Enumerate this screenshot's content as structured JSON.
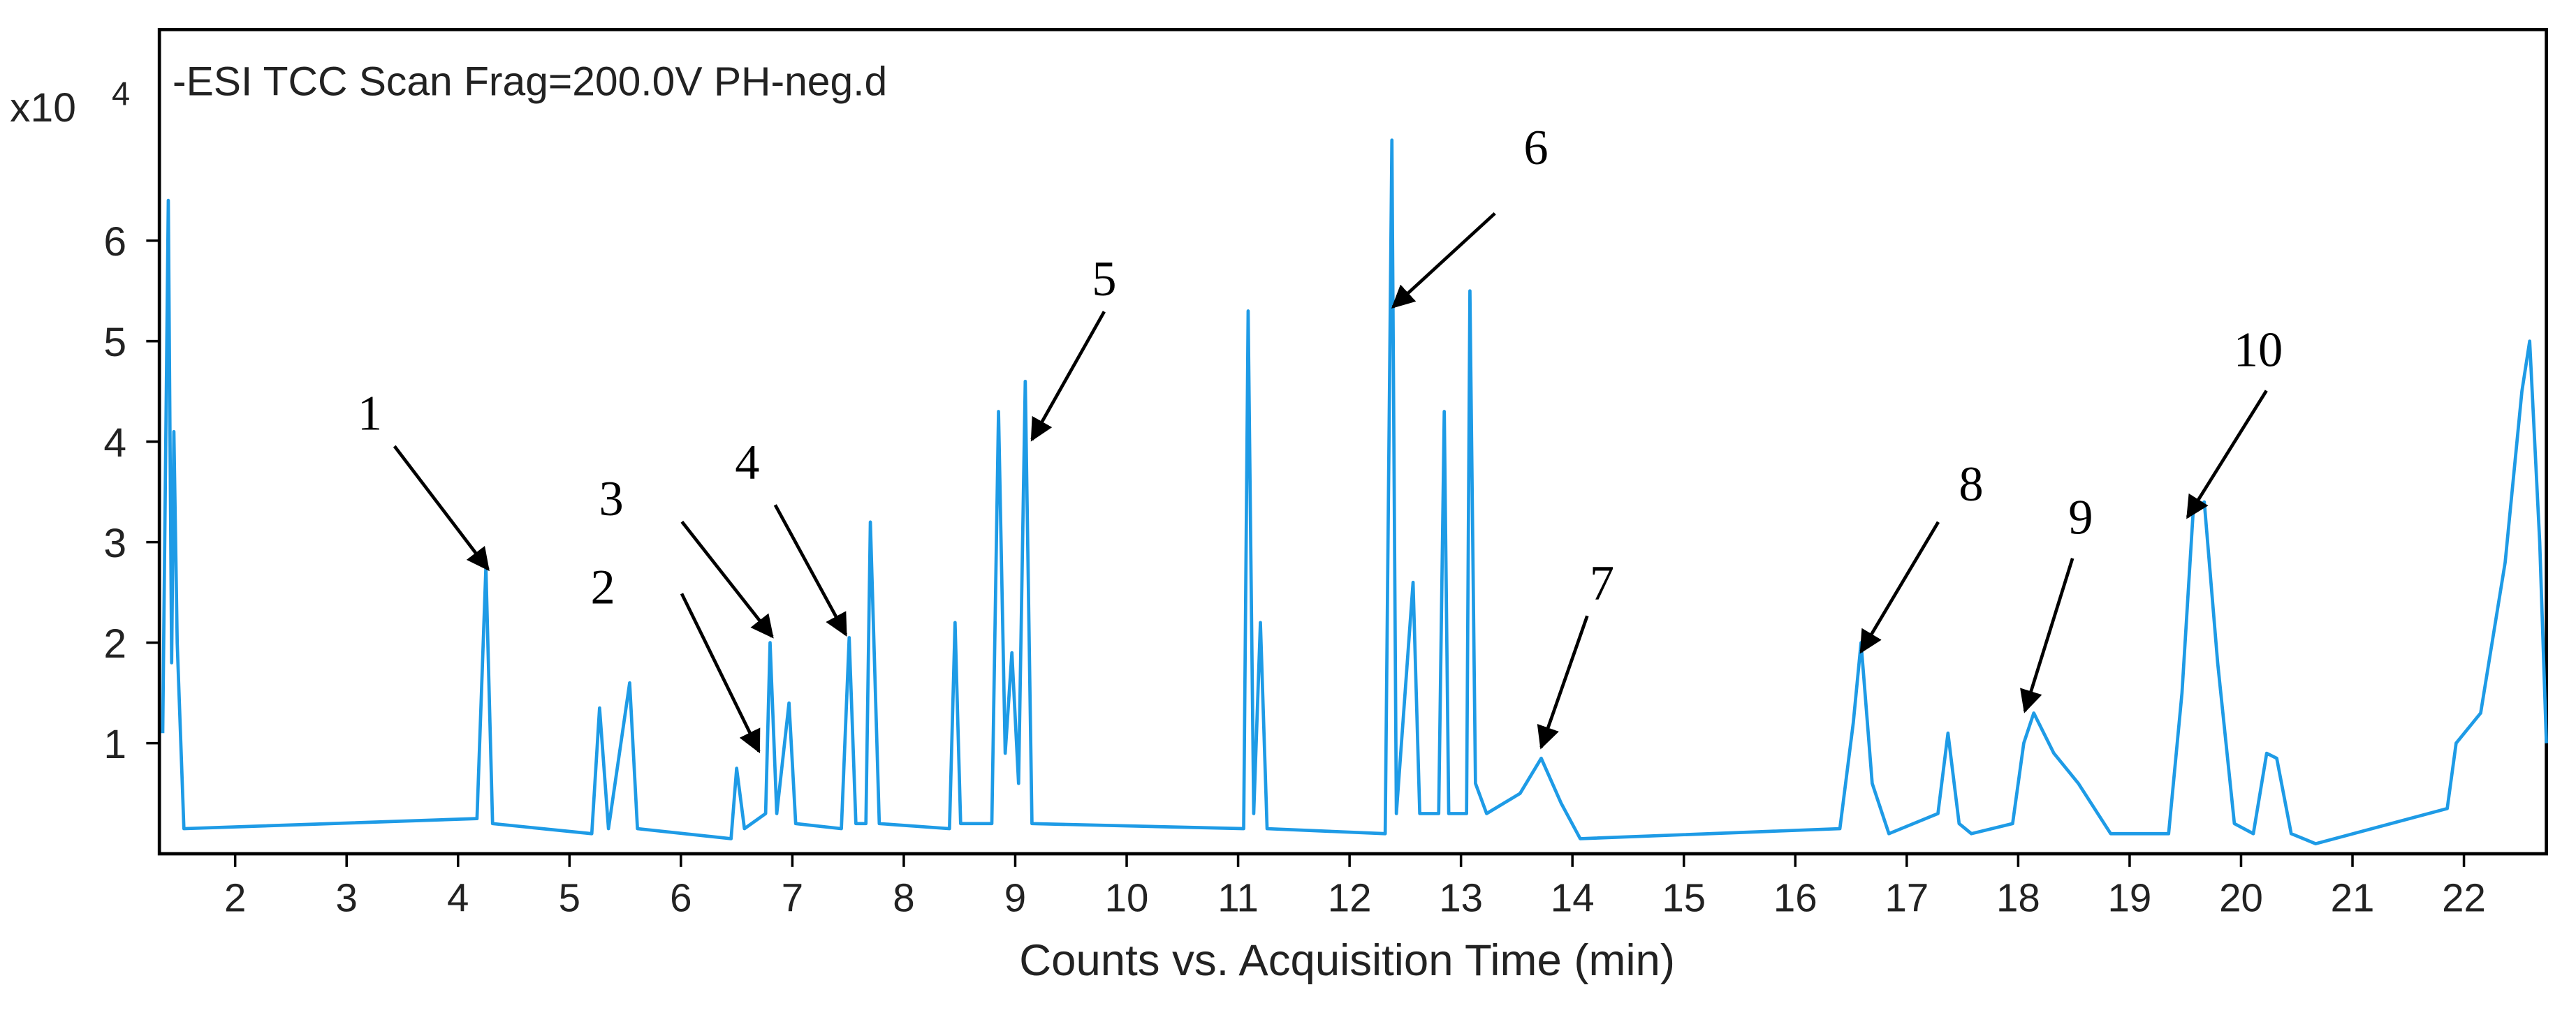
{
  "chart_data": {
    "type": "line",
    "title": "-ESI TCC Scan Frag=200.0V PH-neg.d",
    "x_label": "Counts vs. Acquisition Time (min)",
    "y_multiplier": {
      "base": "x10",
      "exponent": "4"
    },
    "color": "#1e9be6",
    "xlim": [
      1.32,
      22.74
    ],
    "ylim": [
      -0.1,
      8.1
    ],
    "xticks": [
      2,
      3,
      4,
      5,
      6,
      7,
      8,
      9,
      10,
      11,
      12,
      13,
      14,
      15,
      16,
      17,
      18,
      19,
      20,
      21,
      22
    ],
    "yticks": [
      1,
      2,
      3,
      4,
      5,
      6
    ],
    "x": [
      1.35,
      1.4,
      1.43,
      1.45,
      1.48,
      1.54,
      4.17,
      4.25,
      4.31,
      5.2,
      5.27,
      5.35,
      5.54,
      5.61,
      6.45,
      6.5,
      6.57,
      6.76,
      6.8,
      6.86,
      6.97,
      7.03,
      7.44,
      7.51,
      7.57,
      7.66,
      7.7,
      7.78,
      8.41,
      8.46,
      8.51,
      8.79,
      8.85,
      8.91,
      8.97,
      9.03,
      9.09,
      9.15,
      11.05,
      11.09,
      11.14,
      11.2,
      11.26,
      12.32,
      12.38,
      12.42,
      12.57,
      12.63,
      12.8,
      12.85,
      12.89,
      13.05,
      13.08,
      13.13,
      13.23,
      13.53,
      13.72,
      13.9,
      14.07,
      16.4,
      16.52,
      16.59,
      16.69,
      16.84,
      17.28,
      17.37,
      17.47,
      17.58,
      17.95,
      18.05,
      18.14,
      18.32,
      18.54,
      18.83,
      19.35,
      19.47,
      19.57,
      19.67,
      19.79,
      19.94,
      20.11,
      20.23,
      20.32,
      20.45,
      20.67,
      21.85,
      21.93,
      22.15,
      22.37,
      22.52,
      22.59,
      22.68,
      22.74
    ],
    "values": [
      1.1,
      6.4,
      1.8,
      4.1,
      2.0,
      0.15,
      0.25,
      2.75,
      0.2,
      0.1,
      1.35,
      0.15,
      1.6,
      0.15,
      0.05,
      0.75,
      0.15,
      0.3,
      2.0,
      0.3,
      1.4,
      0.2,
      0.15,
      2.05,
      0.2,
      0.2,
      3.2,
      0.2,
      0.15,
      2.2,
      0.2,
      0.2,
      4.3,
      0.9,
      1.9,
      0.6,
      4.6,
      0.2,
      0.15,
      5.3,
      0.3,
      2.2,
      0.15,
      0.1,
      7.0,
      0.3,
      2.6,
      0.3,
      0.3,
      4.3,
      0.3,
      0.3,
      5.5,
      0.6,
      0.3,
      0.5,
      0.85,
      0.4,
      0.05,
      0.15,
      1.2,
      2.0,
      0.6,
      0.1,
      0.3,
      1.1,
      0.2,
      0.1,
      0.2,
      1.0,
      1.3,
      0.9,
      0.6,
      0.1,
      0.1,
      1.5,
      3.3,
      3.4,
      1.8,
      0.2,
      0.1,
      0.9,
      0.85,
      0.1,
      0.0,
      0.35,
      1.0,
      1.3,
      2.8,
      4.5,
      5.0,
      3.0,
      1.0
    ],
    "annotations": [
      {
        "text": "1",
        "x": 4.27,
        "y": 2.73
      },
      {
        "text": "2",
        "x": 6.7,
        "y": 0.92
      },
      {
        "text": "3",
        "x": 6.82,
        "y": 2.06
      },
      {
        "text": "4",
        "x": 7.48,
        "y": 2.08
      },
      {
        "text": "5",
        "x": 9.15,
        "y": 4.02
      },
      {
        "text": "6",
        "x": 12.39,
        "y": 5.34
      },
      {
        "text": "7",
        "x": 13.72,
        "y": 0.96
      },
      {
        "text": "8",
        "x": 16.59,
        "y": 1.91
      },
      {
        "text": "9",
        "x": 18.06,
        "y": 1.32
      },
      {
        "text": "10",
        "x": 19.52,
        "y": 3.25
      }
    ]
  }
}
